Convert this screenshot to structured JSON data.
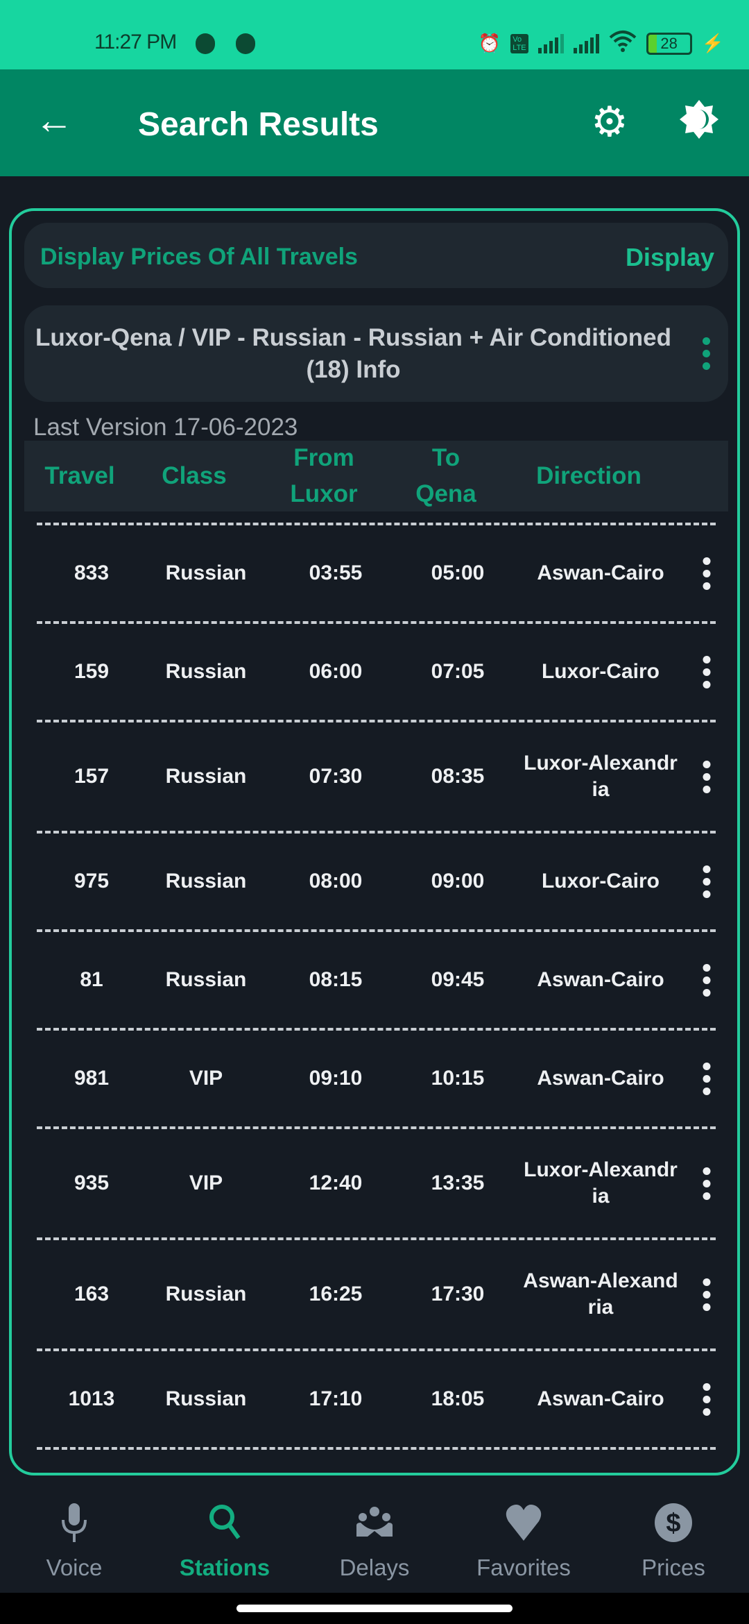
{
  "status_bar": {
    "time": "11:27 PM",
    "battery": "28",
    "icons": [
      "alarm-icon",
      "volte-icon",
      "signal-icon",
      "signal-icon",
      "wifi-icon",
      "battery-icon",
      "charging-icon"
    ]
  },
  "app_bar": {
    "title": "Search Results",
    "icons": [
      "back-arrow-icon",
      "gear-icon",
      "theme-toggle-icon"
    ]
  },
  "prices_bar": {
    "label": "Display Prices Of All Travels",
    "button": "Display"
  },
  "info": {
    "text": "Luxor-Qena / VIP - Russian - Russian + Air Conditioned (18) Info"
  },
  "last_version": "Last Version 17-06-2023",
  "table": {
    "headers": [
      "Travel",
      "Class",
      "From Luxor",
      "To Qena",
      "Direction"
    ],
    "rows": [
      [
        "833",
        "Russian",
        "03:55",
        "05:00",
        "Aswan-Cairo"
      ],
      [
        "159",
        "Russian",
        "06:00",
        "07:05",
        "Luxor-Cairo"
      ],
      [
        "157",
        "Russian",
        "07:30",
        "08:35",
        "Luxor-Alexandria"
      ],
      [
        "975",
        "Russian",
        "08:00",
        "09:00",
        "Luxor-Cairo"
      ],
      [
        "81",
        "Russian",
        "08:15",
        "09:45",
        "Aswan-Cairo"
      ],
      [
        "981",
        "VIP",
        "09:10",
        "10:15",
        "Aswan-Cairo"
      ],
      [
        "935",
        "VIP",
        "12:40",
        "13:35",
        "Luxor-Alexandria"
      ],
      [
        "163",
        "Russian",
        "16:25",
        "17:30",
        "Aswan-Alexandria"
      ],
      [
        "1013",
        "Russian",
        "17:10",
        "18:05",
        "Aswan-Cairo"
      ]
    ]
  },
  "bottom_nav": {
    "items": [
      {
        "label": "Voice",
        "icon": "microphone-icon"
      },
      {
        "label": "Stations",
        "icon": "search-icon",
        "active": true
      },
      {
        "label": "Delays",
        "icon": "group-icon"
      },
      {
        "label": "Favorites",
        "icon": "heart-icon"
      },
      {
        "label": "Prices",
        "icon": "dollar-icon"
      }
    ]
  },
  "colors": {
    "status_bar": "#17d6a0",
    "app_bar": "#018663",
    "accent": "#10a37a",
    "background": "#151b23",
    "surface": "#1f2830"
  }
}
